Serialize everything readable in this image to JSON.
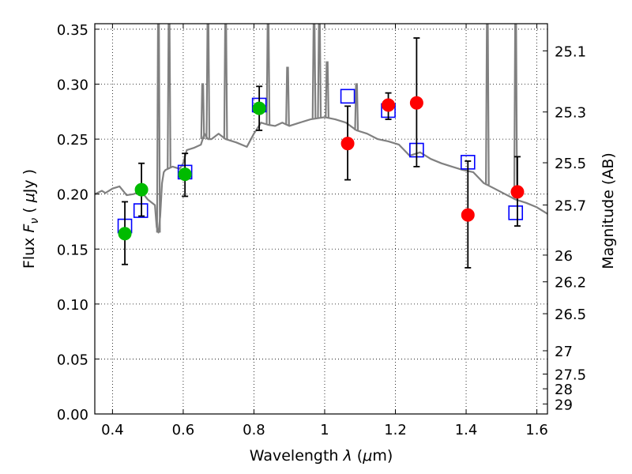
{
  "chart_data": {
    "type": "scatter",
    "xlabel": "Wavelength  λ (μm)",
    "ylabel": "Flux  F_ν  ( μJy )",
    "ylabel_parts": [
      "Flux  ",
      "F",
      "ν",
      "  ( ",
      "μ",
      "Jy )"
    ],
    "xlabel_parts": [
      "Wavelength  ",
      "λ",
      " (",
      "μ",
      "m)"
    ],
    "y2label": "Magnitude (AB)",
    "xlim": [
      0.35,
      1.63
    ],
    "ylim": [
      0.0,
      0.355
    ],
    "grid": true,
    "x_ticks": [
      0.4,
      0.6,
      0.8,
      1.0,
      1.2,
      1.4,
      1.6
    ],
    "x_tick_labels": [
      "0.4",
      "0.6",
      "0.8",
      "1",
      "1.2",
      "1.4",
      "1.6"
    ],
    "y_ticks": [
      0.0,
      0.05,
      0.1,
      0.15,
      0.2,
      0.25,
      0.3,
      0.35
    ],
    "y_tick_labels": [
      "0.00",
      "0.05",
      "0.10",
      "0.15",
      "0.20",
      "0.25",
      "0.30",
      "0.35"
    ],
    "y2_ticks": [
      {
        "label": "25.1",
        "flux": 0.3303
      },
      {
        "label": "25.3",
        "flux": 0.2747
      },
      {
        "label": "25.5",
        "flux": 0.2285
      },
      {
        "label": "25.7",
        "flux": 0.1901
      },
      {
        "label": "26",
        "flux": 0.1445
      },
      {
        "label": "26.2",
        "flux": 0.1202
      },
      {
        "label": "26.5",
        "flux": 0.0912
      },
      {
        "label": "27",
        "flux": 0.0575
      },
      {
        "label": "27.5",
        "flux": 0.0363
      },
      {
        "label": "28",
        "flux": 0.0229
      },
      {
        "label": "29",
        "flux": 0.0091
      }
    ],
    "series": [
      {
        "name": "template model",
        "kind": "line",
        "color": "#808080",
        "x": [
          0.35,
          0.37,
          0.38,
          0.4,
          0.42,
          0.44,
          0.46,
          0.48,
          0.5,
          0.52,
          0.525,
          0.53,
          0.535,
          0.54,
          0.545,
          0.55,
          0.57,
          0.59,
          0.6,
          0.61,
          0.63,
          0.65,
          0.66,
          0.67,
          0.68,
          0.7,
          0.72,
          0.75,
          0.78,
          0.8,
          0.82,
          0.84,
          0.86,
          0.88,
          0.9,
          0.93,
          0.96,
          1.0,
          1.03,
          1.06,
          1.09,
          1.12,
          1.15,
          1.18,
          1.21,
          1.24,
          1.27,
          1.3,
          1.33,
          1.36,
          1.39,
          1.42,
          1.45,
          1.48,
          1.51,
          1.54,
          1.57,
          1.6,
          1.63
        ],
        "y": [
          0.2,
          0.203,
          0.201,
          0.205,
          0.207,
          0.199,
          0.2,
          0.203,
          0.195,
          0.19,
          0.17,
          0.165,
          0.18,
          0.21,
          0.22,
          0.222,
          0.225,
          0.223,
          0.228,
          0.24,
          0.242,
          0.245,
          0.255,
          0.25,
          0.25,
          0.255,
          0.25,
          0.247,
          0.243,
          0.255,
          0.265,
          0.263,
          0.262,
          0.265,
          0.262,
          0.265,
          0.268,
          0.27,
          0.268,
          0.265,
          0.258,
          0.255,
          0.25,
          0.248,
          0.245,
          0.235,
          0.238,
          0.232,
          0.228,
          0.225,
          0.222,
          0.22,
          0.21,
          0.205,
          0.2,
          0.195,
          0.192,
          0.188,
          0.182
        ]
      },
      {
        "name": "model emission lines",
        "kind": "spikes",
        "color": "#808080",
        "lines": [
          {
            "x": 0.53,
            "peak": 0.355
          },
          {
            "x": 0.56,
            "peak": 0.355
          },
          {
            "x": 0.655,
            "peak": 0.3
          },
          {
            "x": 0.67,
            "peak": 0.355
          },
          {
            "x": 0.72,
            "peak": 0.355
          },
          {
            "x": 0.84,
            "peak": 0.355
          },
          {
            "x": 0.895,
            "peak": 0.315
          },
          {
            "x": 0.97,
            "peak": 0.355
          },
          {
            "x": 0.985,
            "peak": 0.355
          },
          {
            "x": 1.007,
            "peak": 0.32
          },
          {
            "x": 1.09,
            "peak": 0.3
          },
          {
            "x": 1.46,
            "peak": 0.355
          },
          {
            "x": 1.54,
            "peak": 0.355
          }
        ]
      },
      {
        "name": "model photometry",
        "kind": "open-square",
        "color": "#0000ff",
        "x": [
          0.435,
          0.48,
          0.605,
          0.815,
          1.065,
          1.18,
          1.26,
          1.405,
          1.54
        ],
        "y": [
          0.171,
          0.185,
          0.22,
          0.281,
          0.289,
          0.276,
          0.24,
          0.229,
          0.183
        ]
      },
      {
        "name": "optical detections",
        "kind": "filled-circle",
        "color": "#00bb00",
        "x": [
          0.435,
          0.482,
          0.605,
          0.815
        ],
        "y": [
          0.164,
          0.204,
          0.218,
          0.278
        ],
        "yerr_low": [
          0.136,
          0.18,
          0.198,
          0.258
        ],
        "yerr_high": [
          0.193,
          0.228,
          0.237,
          0.298
        ]
      },
      {
        "name": "near-IR detections",
        "kind": "filled-circle",
        "color": "#ff0000",
        "x": [
          1.065,
          1.18,
          1.26,
          1.405,
          1.545
        ],
        "y": [
          0.246,
          0.281,
          0.283,
          0.181,
          0.202
        ],
        "yerr_low": [
          0.213,
          0.268,
          0.225,
          0.133,
          0.171
        ],
        "yerr_high": [
          0.28,
          0.292,
          0.342,
          0.23,
          0.234
        ]
      }
    ]
  }
}
